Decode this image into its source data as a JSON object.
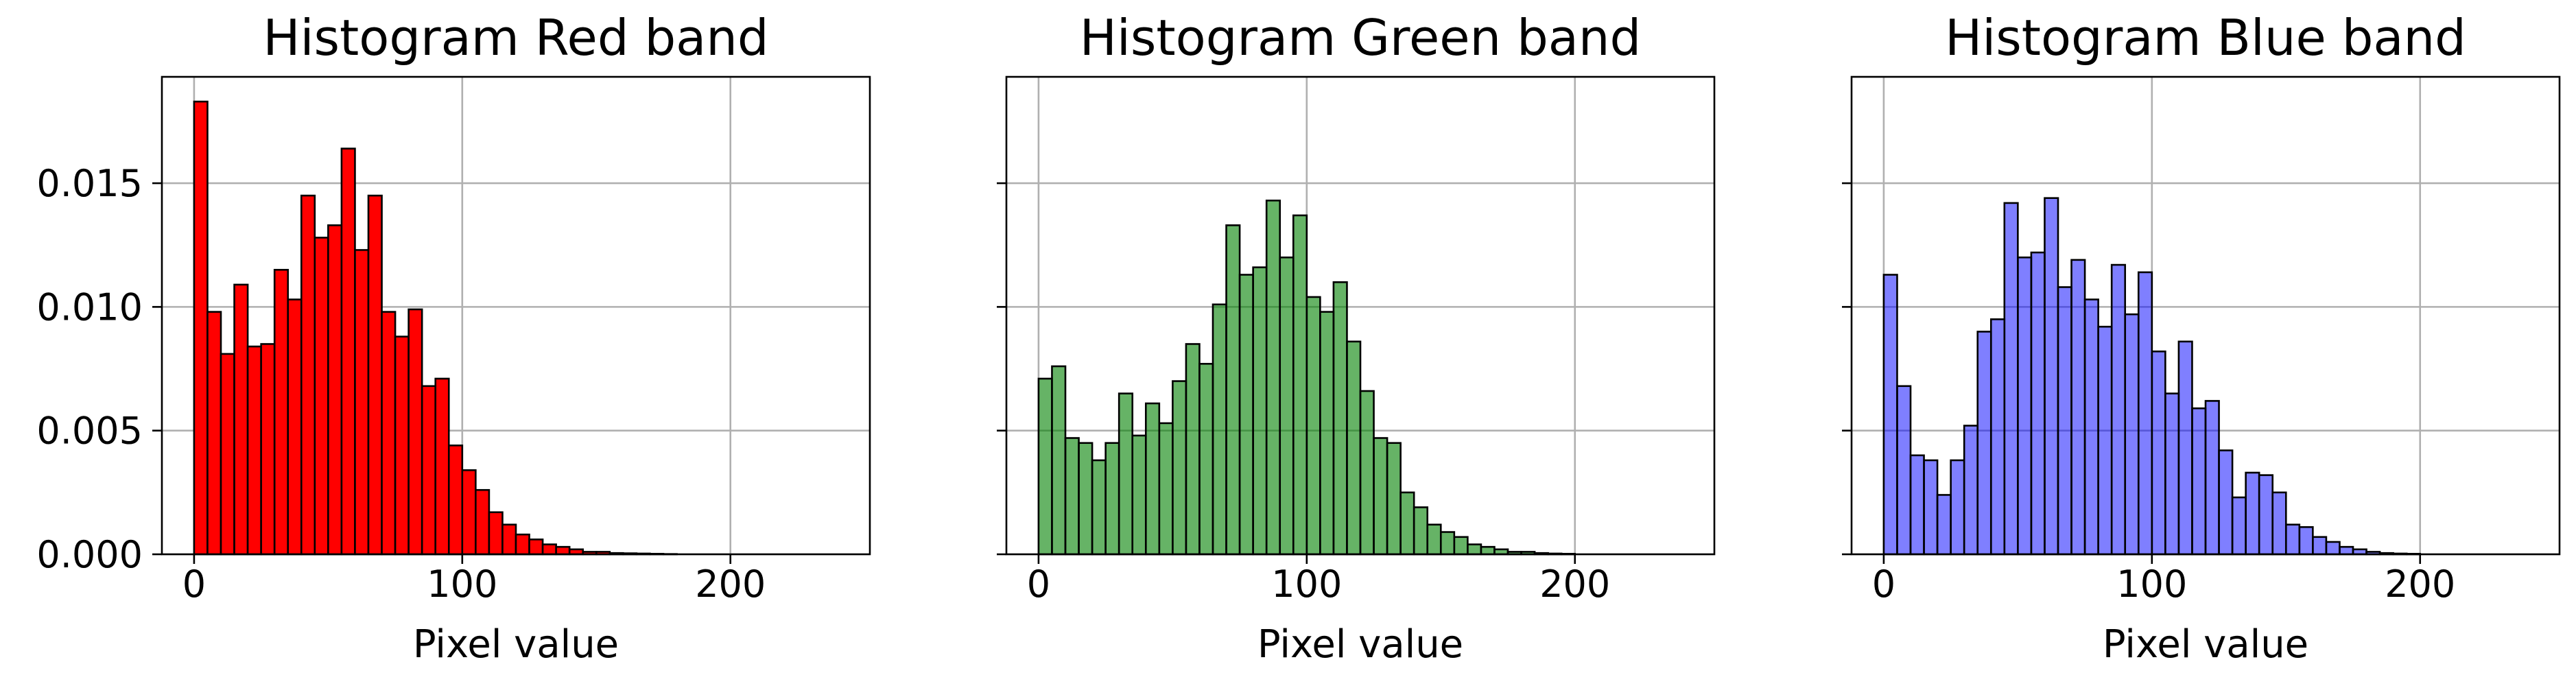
{
  "chart_data": [
    {
      "type": "bar",
      "title": "Histogram Red band",
      "xlabel": "Pixel value",
      "ylabel": "",
      "color": "#ff0000",
      "edgecolor": "#000000",
      "opacity": 1.0,
      "bin_width": 5,
      "xlim": [
        -12,
        252
      ],
      "ylim": [
        0,
        0.0193
      ],
      "xticks": [
        0,
        100,
        200
      ],
      "xtick_labels": [
        "0",
        "100",
        "200"
      ],
      "yticks": [
        0,
        0.005,
        0.01,
        0.015
      ],
      "ytick_labels": [
        "0.000",
        "0.005",
        "0.010",
        "0.015"
      ],
      "grid": true,
      "bins": [
        0,
        5,
        10,
        15,
        20,
        25,
        30,
        35,
        40,
        45,
        50,
        55,
        60,
        65,
        70,
        75,
        80,
        85,
        90,
        95,
        100,
        105,
        110,
        115,
        120,
        125,
        130,
        135,
        140,
        145,
        150,
        155,
        160,
        165,
        170,
        175
      ],
      "values": [
        0.0183,
        0.0098,
        0.0081,
        0.0109,
        0.0084,
        0.0085,
        0.0115,
        0.0103,
        0.0145,
        0.0128,
        0.0133,
        0.0164,
        0.0123,
        0.0145,
        0.0098,
        0.0088,
        0.0099,
        0.0068,
        0.0071,
        0.0044,
        0.0034,
        0.0026,
        0.0017,
        0.0012,
        0.0008,
        0.0006,
        0.0004,
        0.0003,
        0.0002,
        0.0001,
        0.0001,
        5e-05,
        4e-05,
        3e-05,
        2e-05,
        1e-05
      ]
    },
    {
      "type": "bar",
      "title": "Histogram Green band",
      "xlabel": "Pixel value",
      "ylabel": "",
      "color": "#008000",
      "edgecolor": "#000000",
      "opacity": 0.6,
      "bin_width": 5,
      "xlim": [
        -12,
        252
      ],
      "ylim": [
        0,
        0.0193
      ],
      "xticks": [
        0,
        100,
        200
      ],
      "xtick_labels": [
        "0",
        "100",
        "200"
      ],
      "yticks": [
        0,
        0.005,
        0.01,
        0.015
      ],
      "ytick_labels": [
        "",
        "",
        "",
        ""
      ],
      "grid": true,
      "bins": [
        0,
        5,
        10,
        15,
        20,
        25,
        30,
        35,
        40,
        45,
        50,
        55,
        60,
        65,
        70,
        75,
        80,
        85,
        90,
        95,
        100,
        105,
        110,
        115,
        120,
        125,
        130,
        135,
        140,
        145,
        150,
        155,
        160,
        165,
        170,
        175,
        180,
        185,
        190,
        195
      ],
      "values": [
        0.0071,
        0.0076,
        0.0047,
        0.0045,
        0.0038,
        0.0045,
        0.0065,
        0.0048,
        0.0061,
        0.0053,
        0.007,
        0.0085,
        0.0077,
        0.0101,
        0.0133,
        0.0113,
        0.0116,
        0.0143,
        0.012,
        0.0137,
        0.0104,
        0.0098,
        0.011,
        0.0086,
        0.0066,
        0.0047,
        0.0045,
        0.0025,
        0.0019,
        0.0012,
        0.0009,
        0.0007,
        0.0004,
        0.0003,
        0.0002,
        0.0001,
        0.0001,
        5e-05,
        3e-05,
        2e-05
      ]
    },
    {
      "type": "bar",
      "title": "Histogram Blue band",
      "xlabel": "Pixel value",
      "ylabel": "",
      "color": "#0000ff",
      "edgecolor": "#000000",
      "opacity": 0.5,
      "bin_width": 5,
      "xlim": [
        -12,
        252
      ],
      "ylim": [
        0,
        0.0193
      ],
      "xticks": [
        0,
        100,
        200
      ],
      "xtick_labels": [
        "0",
        "100",
        "200"
      ],
      "yticks": [
        0,
        0.005,
        0.01,
        0.015
      ],
      "ytick_labels": [
        "",
        "",
        "",
        ""
      ],
      "grid": true,
      "bins": [
        0,
        5,
        10,
        15,
        20,
        25,
        30,
        35,
        40,
        45,
        50,
        55,
        60,
        65,
        70,
        75,
        80,
        85,
        90,
        95,
        100,
        105,
        110,
        115,
        120,
        125,
        130,
        135,
        140,
        145,
        150,
        155,
        160,
        165,
        170,
        175,
        180,
        185,
        190,
        195
      ],
      "values": [
        0.0113,
        0.0068,
        0.004,
        0.0038,
        0.0024,
        0.0038,
        0.0052,
        0.009,
        0.0095,
        0.0142,
        0.012,
        0.0122,
        0.0144,
        0.0108,
        0.0119,
        0.0103,
        0.0092,
        0.0117,
        0.0097,
        0.0114,
        0.0082,
        0.0065,
        0.0086,
        0.0059,
        0.0062,
        0.0042,
        0.0023,
        0.0033,
        0.0032,
        0.0025,
        0.0012,
        0.0011,
        0.0007,
        0.0005,
        0.0003,
        0.0002,
        0.0001,
        5e-05,
        3e-05,
        2e-05
      ]
    }
  ]
}
